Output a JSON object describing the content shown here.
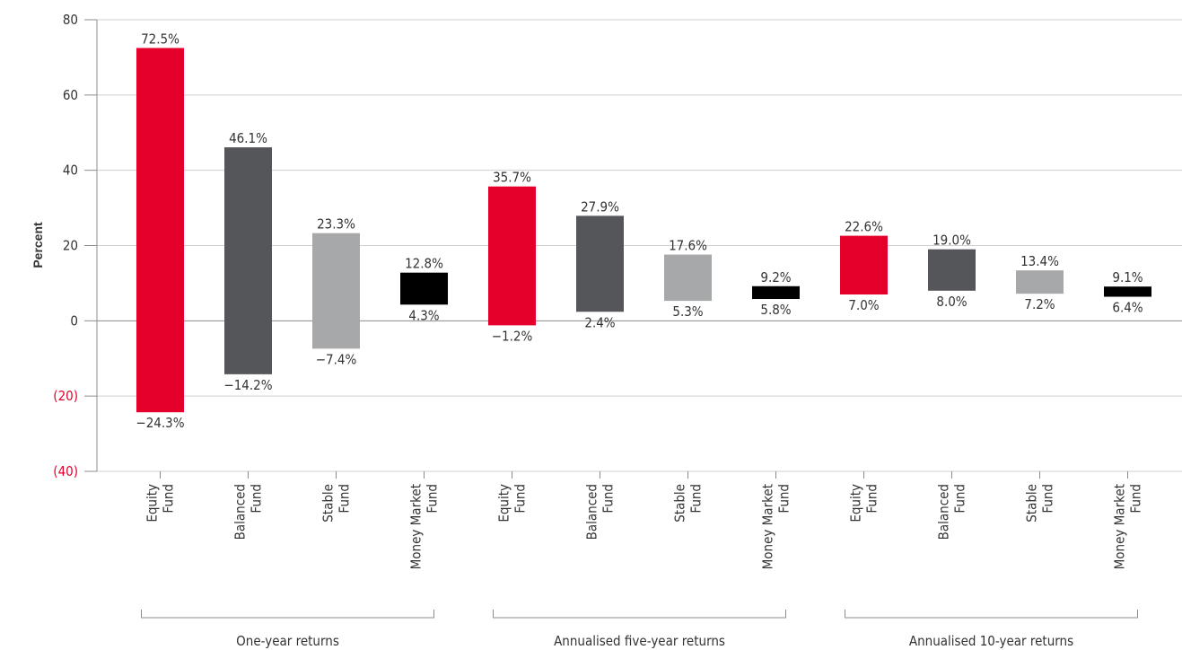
{
  "chart_data": {
    "type": "floating-bar",
    "ylabel": "Percent",
    "ylim": [
      -40,
      80
    ],
    "yticks": [
      80,
      60,
      40,
      20,
      0,
      -20,
      -40
    ],
    "ytick_labels": [
      "80",
      "60",
      "40",
      "20",
      "0",
      "(20)",
      "(40)"
    ],
    "negative_tick_color": "#e4002b",
    "grid": true,
    "colors": {
      "Equity Fund": "#e4002b",
      "Balanced Fund": "#55565a",
      "Stable Fund": "#a7a8aa",
      "Money Market Fund": "#000000"
    },
    "groups": [
      {
        "label": "One-year returns",
        "bars": [
          {
            "category": "Equity Fund",
            "cat_lines": [
              "Equity",
              "Fund"
            ],
            "high": 72.5,
            "low": -24.3,
            "high_label": "72.5%",
            "low_label": "−24.3%"
          },
          {
            "category": "Balanced Fund",
            "cat_lines": [
              "Balanced",
              "Fund"
            ],
            "high": 46.1,
            "low": -14.2,
            "high_label": "46.1%",
            "low_label": "−14.2%"
          },
          {
            "category": "Stable Fund",
            "cat_lines": [
              "Stable",
              "Fund"
            ],
            "high": 23.3,
            "low": -7.4,
            "high_label": "23.3%",
            "low_label": "−7.4%"
          },
          {
            "category": "Money Market Fund",
            "cat_lines": [
              "Money Market",
              "Fund"
            ],
            "high": 12.8,
            "low": 4.3,
            "high_label": "12.8%",
            "low_label": "4.3%"
          }
        ]
      },
      {
        "label": "Annualised five-year returns",
        "bars": [
          {
            "category": "Equity Fund",
            "cat_lines": [
              "Equity",
              "Fund"
            ],
            "high": 35.7,
            "low": -1.2,
            "high_label": "35.7%",
            "low_label": "−1.2%"
          },
          {
            "category": "Balanced Fund",
            "cat_lines": [
              "Balanced",
              "Fund"
            ],
            "high": 27.9,
            "low": 2.4,
            "high_label": "27.9%",
            "low_label": "2.4%"
          },
          {
            "category": "Stable Fund",
            "cat_lines": [
              "Stable",
              "Fund"
            ],
            "high": 17.6,
            "low": 5.3,
            "high_label": "17.6%",
            "low_label": "5.3%"
          },
          {
            "category": "Money Market Fund",
            "cat_lines": [
              "Money Market",
              "Fund"
            ],
            "high": 9.2,
            "low": 5.8,
            "high_label": "9.2%",
            "low_label": "5.8%"
          }
        ]
      },
      {
        "label": "Annualised 10-year returns",
        "bars": [
          {
            "category": "Equity Fund",
            "cat_lines": [
              "Equity",
              "Fund"
            ],
            "high": 22.6,
            "low": 7.0,
            "high_label": "22.6%",
            "low_label": "7.0%"
          },
          {
            "category": "Balanced Fund",
            "cat_lines": [
              "Balanced",
              "Fund"
            ],
            "high": 19.0,
            "low": 8.0,
            "high_label": "19.0%",
            "low_label": "8.0%"
          },
          {
            "category": "Stable Fund",
            "cat_lines": [
              "Stable",
              "Fund"
            ],
            "high": 13.4,
            "low": 7.2,
            "high_label": "13.4%",
            "low_label": "7.2%"
          },
          {
            "category": "Money Market Fund",
            "cat_lines": [
              "Money Market",
              "Fund"
            ],
            "high": 9.1,
            "low": 6.4,
            "high_label": "9.1%",
            "low_label": "6.4%"
          }
        ]
      }
    ]
  }
}
